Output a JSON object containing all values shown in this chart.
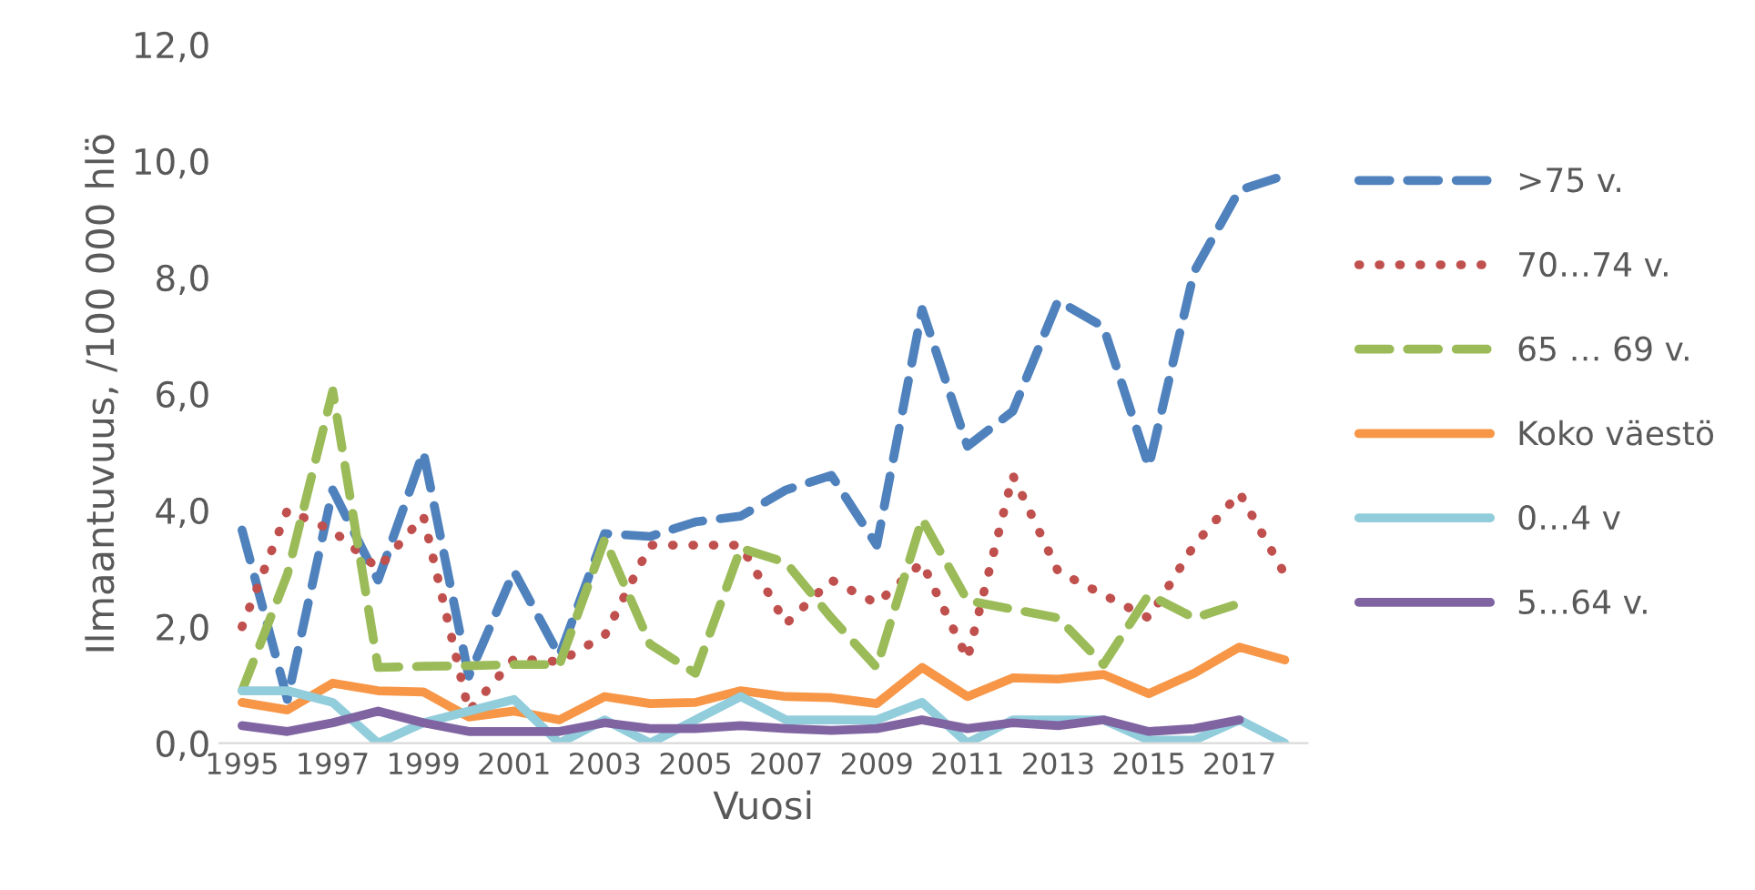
{
  "chart_data": {
    "type": "line",
    "xlabel": "Vuosi",
    "ylabel": "Ilmaantuvuus, /100 000 hlö",
    "categories": [
      "1995",
      null,
      "1997",
      null,
      "1999",
      null,
      "2001",
      null,
      "2003",
      null,
      "2005",
      null,
      "2007",
      null,
      "2009",
      null,
      "2011",
      null,
      "2013",
      null,
      "2015",
      null,
      "2017",
      null
    ],
    "ylim": [
      0,
      12
    ],
    "yticks": [
      {
        "value": 0,
        "label": "0,0"
      },
      {
        "value": 2,
        "label": "2,0"
      },
      {
        "value": 4,
        "label": "4,0"
      },
      {
        "value": 6,
        "label": "6,0"
      },
      {
        "value": 8,
        "label": "8,0"
      },
      {
        "value": 10,
        "label": "10,0"
      },
      {
        "value": 12,
        "label": "12,0"
      }
    ],
    "grid": false,
    "legend": "right",
    "marker": "none",
    "series": [
      {
        "name": ">75 v.",
        "color": "#4f81bd",
        "line_style": "dashed",
        "values": [
          3.66,
          0.75,
          4.35,
          2.8,
          5.0,
          1.15,
          2.95,
          1.5,
          3.6,
          3.55,
          3.8,
          3.9,
          4.35,
          4.6,
          3.4,
          7.45,
          5.1,
          5.7,
          7.6,
          7.15,
          4.75,
          8.1,
          9.5,
          9.75
        ]
      },
      {
        "name": "70…74 v.",
        "color": "#c0504d",
        "line_style": "dotted",
        "values": [
          2.0,
          4.0,
          3.65,
          3.0,
          3.9,
          0.55,
          1.45,
          1.4,
          1.85,
          3.4,
          3.4,
          3.4,
          2.05,
          2.8,
          2.4,
          3.1,
          1.45,
          4.6,
          2.95,
          2.55,
          2.15,
          3.4,
          4.3,
          2.9
        ]
      },
      {
        "name": "65 … 69 v.",
        "color": "#9bbb59",
        "line_style": "dashed",
        "values": [
          0.9,
          2.9,
          6.05,
          1.3,
          1.32,
          1.33,
          1.35,
          1.35,
          3.5,
          1.7,
          1.2,
          3.35,
          3.1,
          2.15,
          1.3,
          3.85,
          2.45,
          2.3,
          2.15,
          1.35,
          2.55,
          2.15,
          2.4,
          null
        ]
      },
      {
        "name": "Koko väestö",
        "color": "#f79646",
        "line_style": "solid",
        "values": [
          0.7,
          0.57,
          1.03,
          0.9,
          0.88,
          0.45,
          0.55,
          0.4,
          0.8,
          0.68,
          0.7,
          0.9,
          0.8,
          0.78,
          0.68,
          1.3,
          0.8,
          1.12,
          1.1,
          1.18,
          0.85,
          1.2,
          1.65,
          1.43
        ]
      },
      {
        "name": "0…4 v",
        "color": "#92cddc",
        "line_style": "solid",
        "values": [
          0.9,
          0.9,
          0.7,
          0.0,
          0.35,
          0.55,
          0.75,
          0.0,
          0.4,
          0.0,
          0.4,
          0.8,
          0.4,
          0.4,
          0.4,
          0.7,
          0.0,
          0.4,
          0.4,
          0.4,
          0.05,
          0.05,
          0.4,
          0.0
        ]
      },
      {
        "name": "5…64 v.",
        "color": "#8064a2",
        "line_style": "solid",
        "values": [
          0.3,
          0.2,
          0.35,
          0.55,
          0.35,
          0.2,
          0.2,
          0.2,
          0.35,
          0.25,
          0.25,
          0.3,
          0.25,
          0.22,
          0.25,
          0.4,
          0.25,
          0.35,
          0.3,
          0.4,
          0.2,
          0.25,
          0.4,
          null
        ]
      }
    ]
  }
}
